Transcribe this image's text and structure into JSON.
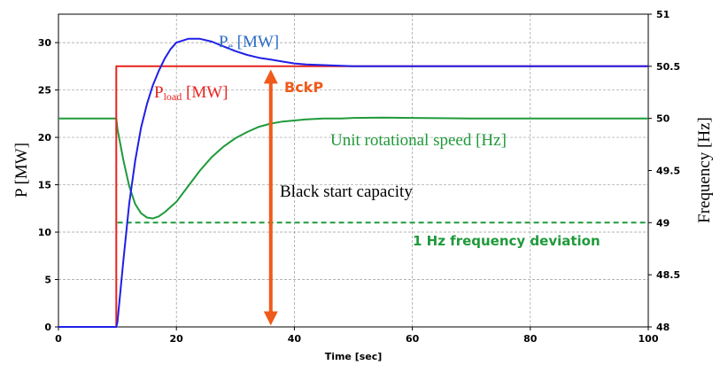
{
  "chart_data": {
    "type": "line",
    "xlabel": "Time [sec]",
    "ylabel_left": "P [MW]",
    "ylabel_right": "Frequency [Hz]",
    "xlim": [
      0,
      100
    ],
    "ylim_left": [
      0,
      33
    ],
    "ylim_right": [
      48,
      51
    ],
    "x_ticks": [
      "0",
      "20",
      "40",
      "60",
      "80",
      "100"
    ],
    "y_left_ticks": [
      "0",
      "5",
      "10",
      "15",
      "20",
      "25",
      "30"
    ],
    "y_right_ticks": [
      "48",
      "48.5",
      "49",
      "49.5",
      "50",
      "50.5",
      "51"
    ],
    "grid": true,
    "colors": {
      "pe": "#1f1fe8",
      "pload": "#e8231f",
      "speed": "#1f9a3a",
      "arrow": "#f05a1a",
      "label_pe": "#2b6cc4",
      "label_pload": "#e8231f",
      "label_speed": "#1f9a3a"
    },
    "series": [
      {
        "key": "pe",
        "axis": "left",
        "x": [
          0,
          9.8,
          10,
          11,
          12,
          13,
          14,
          15,
          16,
          17,
          18,
          19,
          20,
          22,
          24,
          26,
          28,
          30,
          32,
          34,
          36,
          38,
          40,
          42,
          44,
          46,
          48,
          50,
          55,
          60,
          70,
          80,
          90,
          100
        ],
        "y": [
          0,
          0,
          0.5,
          7,
          13,
          17.5,
          21,
          23.5,
          25.5,
          27,
          28.3,
          29.3,
          30,
          30.4,
          30.4,
          30.1,
          29.6,
          29.1,
          28.7,
          28.4,
          28.2,
          28,
          27.8,
          27.7,
          27.65,
          27.6,
          27.55,
          27.5,
          27.5,
          27.5,
          27.5,
          27.5,
          27.5,
          27.5
        ]
      },
      {
        "key": "pload",
        "axis": "left",
        "x": [
          0,
          9.8,
          9.8,
          100
        ],
        "y": [
          0,
          0,
          27.5,
          27.5
        ]
      },
      {
        "key": "speed",
        "axis": "right",
        "x": [
          0,
          9.8,
          10,
          11,
          12,
          13,
          14,
          15,
          16,
          17,
          18,
          20,
          22,
          24,
          26,
          28,
          30,
          32,
          34,
          36,
          38,
          40,
          42,
          45,
          48,
          50,
          55,
          60,
          70,
          80,
          90,
          100
        ],
        "y": [
          50,
          50,
          49.9,
          49.6,
          49.35,
          49.18,
          49.09,
          49.05,
          49.04,
          49.06,
          49.1,
          49.2,
          49.35,
          49.5,
          49.63,
          49.73,
          49.81,
          49.87,
          49.92,
          49.95,
          49.97,
          49.98,
          49.99,
          50.0,
          50.0,
          50.005,
          50.008,
          50.005,
          50.0,
          50.0,
          50.0,
          50.0
        ]
      },
      {
        "key": "deviation",
        "axis": "right",
        "style": "dashed",
        "x": [
          10,
          100
        ],
        "y": [
          49,
          49
        ]
      }
    ],
    "annotations": {
      "pe_main": "P",
      "pe_sub": "e",
      "pe_unit": " [MW]",
      "pload_main": "P",
      "pload_sub": "load",
      "pload_unit": " [MW]",
      "bckp": "BckP",
      "speed": "Unit rotational speed [Hz]",
      "black_start": "Black start capacity",
      "deviation": "1 Hz frequency deviation"
    },
    "arrow": {
      "x": 36,
      "y_from": 0,
      "y_to": 27.5
    }
  }
}
